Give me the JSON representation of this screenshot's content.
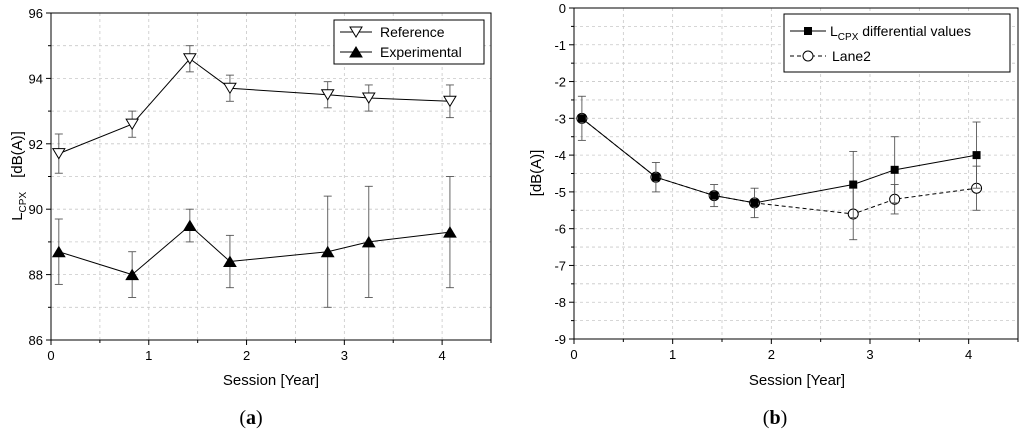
{
  "chart_data": [
    {
      "type": "line",
      "panel_label_open": "(",
      "panel_label_letter": "a",
      "panel_label_close": ")",
      "xlabel": "Session   [Year]",
      "ylabel_main": "L",
      "ylabel_sub": "CPX",
      "ylabel_unit": "[dB(A)]",
      "xlim": [
        0,
        4.5
      ],
      "ylim": [
        86,
        96
      ],
      "xticks": [
        0,
        1,
        2,
        3,
        4
      ],
      "yticks": [
        86,
        88,
        90,
        92,
        94,
        96
      ],
      "grid": true,
      "legend_position": "top-right",
      "series": [
        {
          "name": "Reference",
          "marker": "open-down-triangle",
          "line_style": "solid",
          "x": [
            0.08,
            0.83,
            1.42,
            1.83,
            2.83,
            3.25,
            4.08
          ],
          "y": [
            91.7,
            92.6,
            94.6,
            93.7,
            93.5,
            93.4,
            93.3
          ],
          "err": [
            0.6,
            0.4,
            0.4,
            0.4,
            0.4,
            0.4,
            0.5
          ]
        },
        {
          "name": "Experimental",
          "marker": "filled-up-triangle",
          "line_style": "solid",
          "x": [
            0.08,
            0.83,
            1.42,
            1.83,
            2.83,
            3.25,
            4.08
          ],
          "y": [
            88.7,
            88.0,
            89.5,
            88.4,
            88.7,
            89.0,
            89.3
          ],
          "err": [
            1.0,
            0.7,
            0.5,
            0.8,
            1.7,
            1.7,
            1.7
          ]
        }
      ]
    },
    {
      "type": "line",
      "panel_label_open": "(",
      "panel_label_letter": "b",
      "panel_label_close": ")",
      "xlabel": "Session   [Year]",
      "ylabel": "[dB(A)]",
      "xlim": [
        0,
        4.5
      ],
      "ylim": [
        -9,
        0
      ],
      "xticks": [
        0,
        1,
        2,
        3,
        4
      ],
      "yticks": [
        0,
        -1,
        -2,
        -3,
        -4,
        -5,
        -6,
        -7,
        -8,
        -9
      ],
      "grid": true,
      "legend_position": "top-right",
      "series": [
        {
          "name_main": "L",
          "name_sub": "CPX",
          "name_rest": " differential values",
          "marker": "filled-square",
          "line_style": "solid",
          "x": [
            0.08,
            0.83,
            1.42,
            1.83,
            2.83,
            3.25,
            4.08
          ],
          "y": [
            -3.0,
            -4.6,
            -5.1,
            -5.3,
            -4.8,
            -4.4,
            -4.0
          ],
          "err": [
            0.6,
            0.4,
            0.3,
            0.4,
            0.9,
            0.9,
            0.9
          ]
        },
        {
          "name": "Lane2",
          "marker": "open-circle",
          "line_style": "dashed",
          "x": [
            0.08,
            0.83,
            1.42,
            1.83,
            2.83,
            3.25,
            4.08
          ],
          "y": [
            -3.0,
            -4.6,
            -5.1,
            -5.3,
            -5.6,
            -5.2,
            -4.9
          ],
          "err": [
            0.0,
            0.0,
            0.0,
            0.0,
            0.7,
            0.4,
            0.6
          ]
        }
      ]
    }
  ]
}
